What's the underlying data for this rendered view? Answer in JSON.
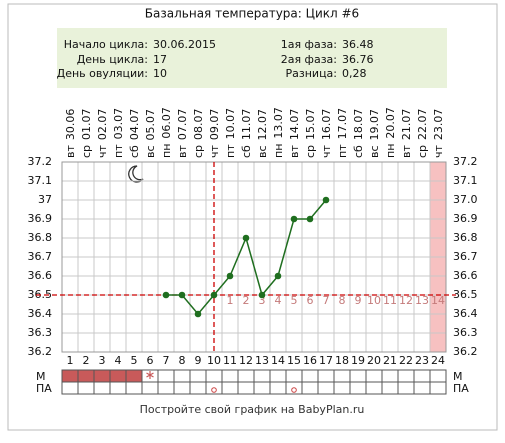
{
  "title": "Базальная температура: Цикл #6",
  "info": {
    "left": [
      {
        "label": "Начало цикла:",
        "value": "30.06.2015"
      },
      {
        "label": "День цикла:",
        "value": 17
      },
      {
        "label": "День овуляции:",
        "value": 10
      }
    ],
    "right": [
      {
        "label": "1ая фаза:",
        "value": 36.48
      },
      {
        "label": "2ая фаза:",
        "value": 36.76
      },
      {
        "label": "Разница:",
        "value": "0,28"
      }
    ]
  },
  "chart_data": {
    "type": "line",
    "categories": [
      1,
      2,
      3,
      4,
      5,
      6,
      7,
      8,
      9,
      10,
      11,
      12,
      13,
      14,
      15,
      16,
      17,
      18,
      19,
      20,
      21,
      22,
      23,
      24
    ],
    "weekdays": [
      "вт",
      "ср",
      "чт",
      "пт",
      "сб",
      "вс",
      "пн",
      "вт",
      "ср",
      "чт",
      "пт",
      "сб",
      "вс",
      "пн",
      "вт",
      "ср",
      "чт",
      "пт",
      "сб",
      "вс",
      "пн",
      "вт",
      "ср",
      "чт"
    ],
    "dates": [
      "30.06",
      "01.07",
      "02.07",
      "03.07",
      "04.07",
      "05.07",
      "06.07",
      "07.07",
      "08.07",
      "09.07",
      "10.07",
      "11.07",
      "12.07",
      "13.07",
      "14.07",
      "15.07",
      "16.07",
      "17.07",
      "18.07",
      "19.07",
      "20.07",
      "21.07",
      "22.07",
      "23.07"
    ],
    "values": [
      null,
      null,
      null,
      null,
      null,
      null,
      36.5,
      36.5,
      36.4,
      36.5,
      36.6,
      36.8,
      36.5,
      36.6,
      36.9,
      36.9,
      37.0,
      null,
      null,
      null,
      null,
      null,
      null,
      null
    ],
    "color": "#1f6e1f",
    "ylim": [
      36.2,
      37.2
    ],
    "yticks": [
      36.2,
      36.3,
      36.4,
      36.5,
      36.6,
      36.7,
      36.8,
      36.9,
      37,
      37.1,
      37.2
    ],
    "y2lim": [
      36.2,
      37.2
    ],
    "y2ticks": [
      36.2,
      36.3,
      36.4,
      36.5,
      36.6,
      36.7,
      36.8,
      36.9,
      {
        "value": 37,
        "label": "37.0"
      },
      37.1,
      37.2
    ],
    "grid": true,
    "coverline": 36.5,
    "coverline_color": "#cc0000",
    "phase_day_labels": [
      null,
      null,
      null,
      null,
      null,
      null,
      null,
      null,
      null,
      null,
      1,
      2,
      3,
      4,
      5,
      6,
      7,
      8,
      9,
      10,
      11,
      12,
      13,
      14
    ],
    "highlight_days": [
      24
    ],
    "rows": [
      {
        "label": "М",
        "days": [
          1,
          2,
          3,
          4,
          5
        ],
        "spotting_days": [
          6
        ]
      },
      {
        "label": "ПА",
        "days": [
          10,
          15
        ]
      }
    ]
  },
  "footer": "Постройте свой график на BabyPlan.ru"
}
